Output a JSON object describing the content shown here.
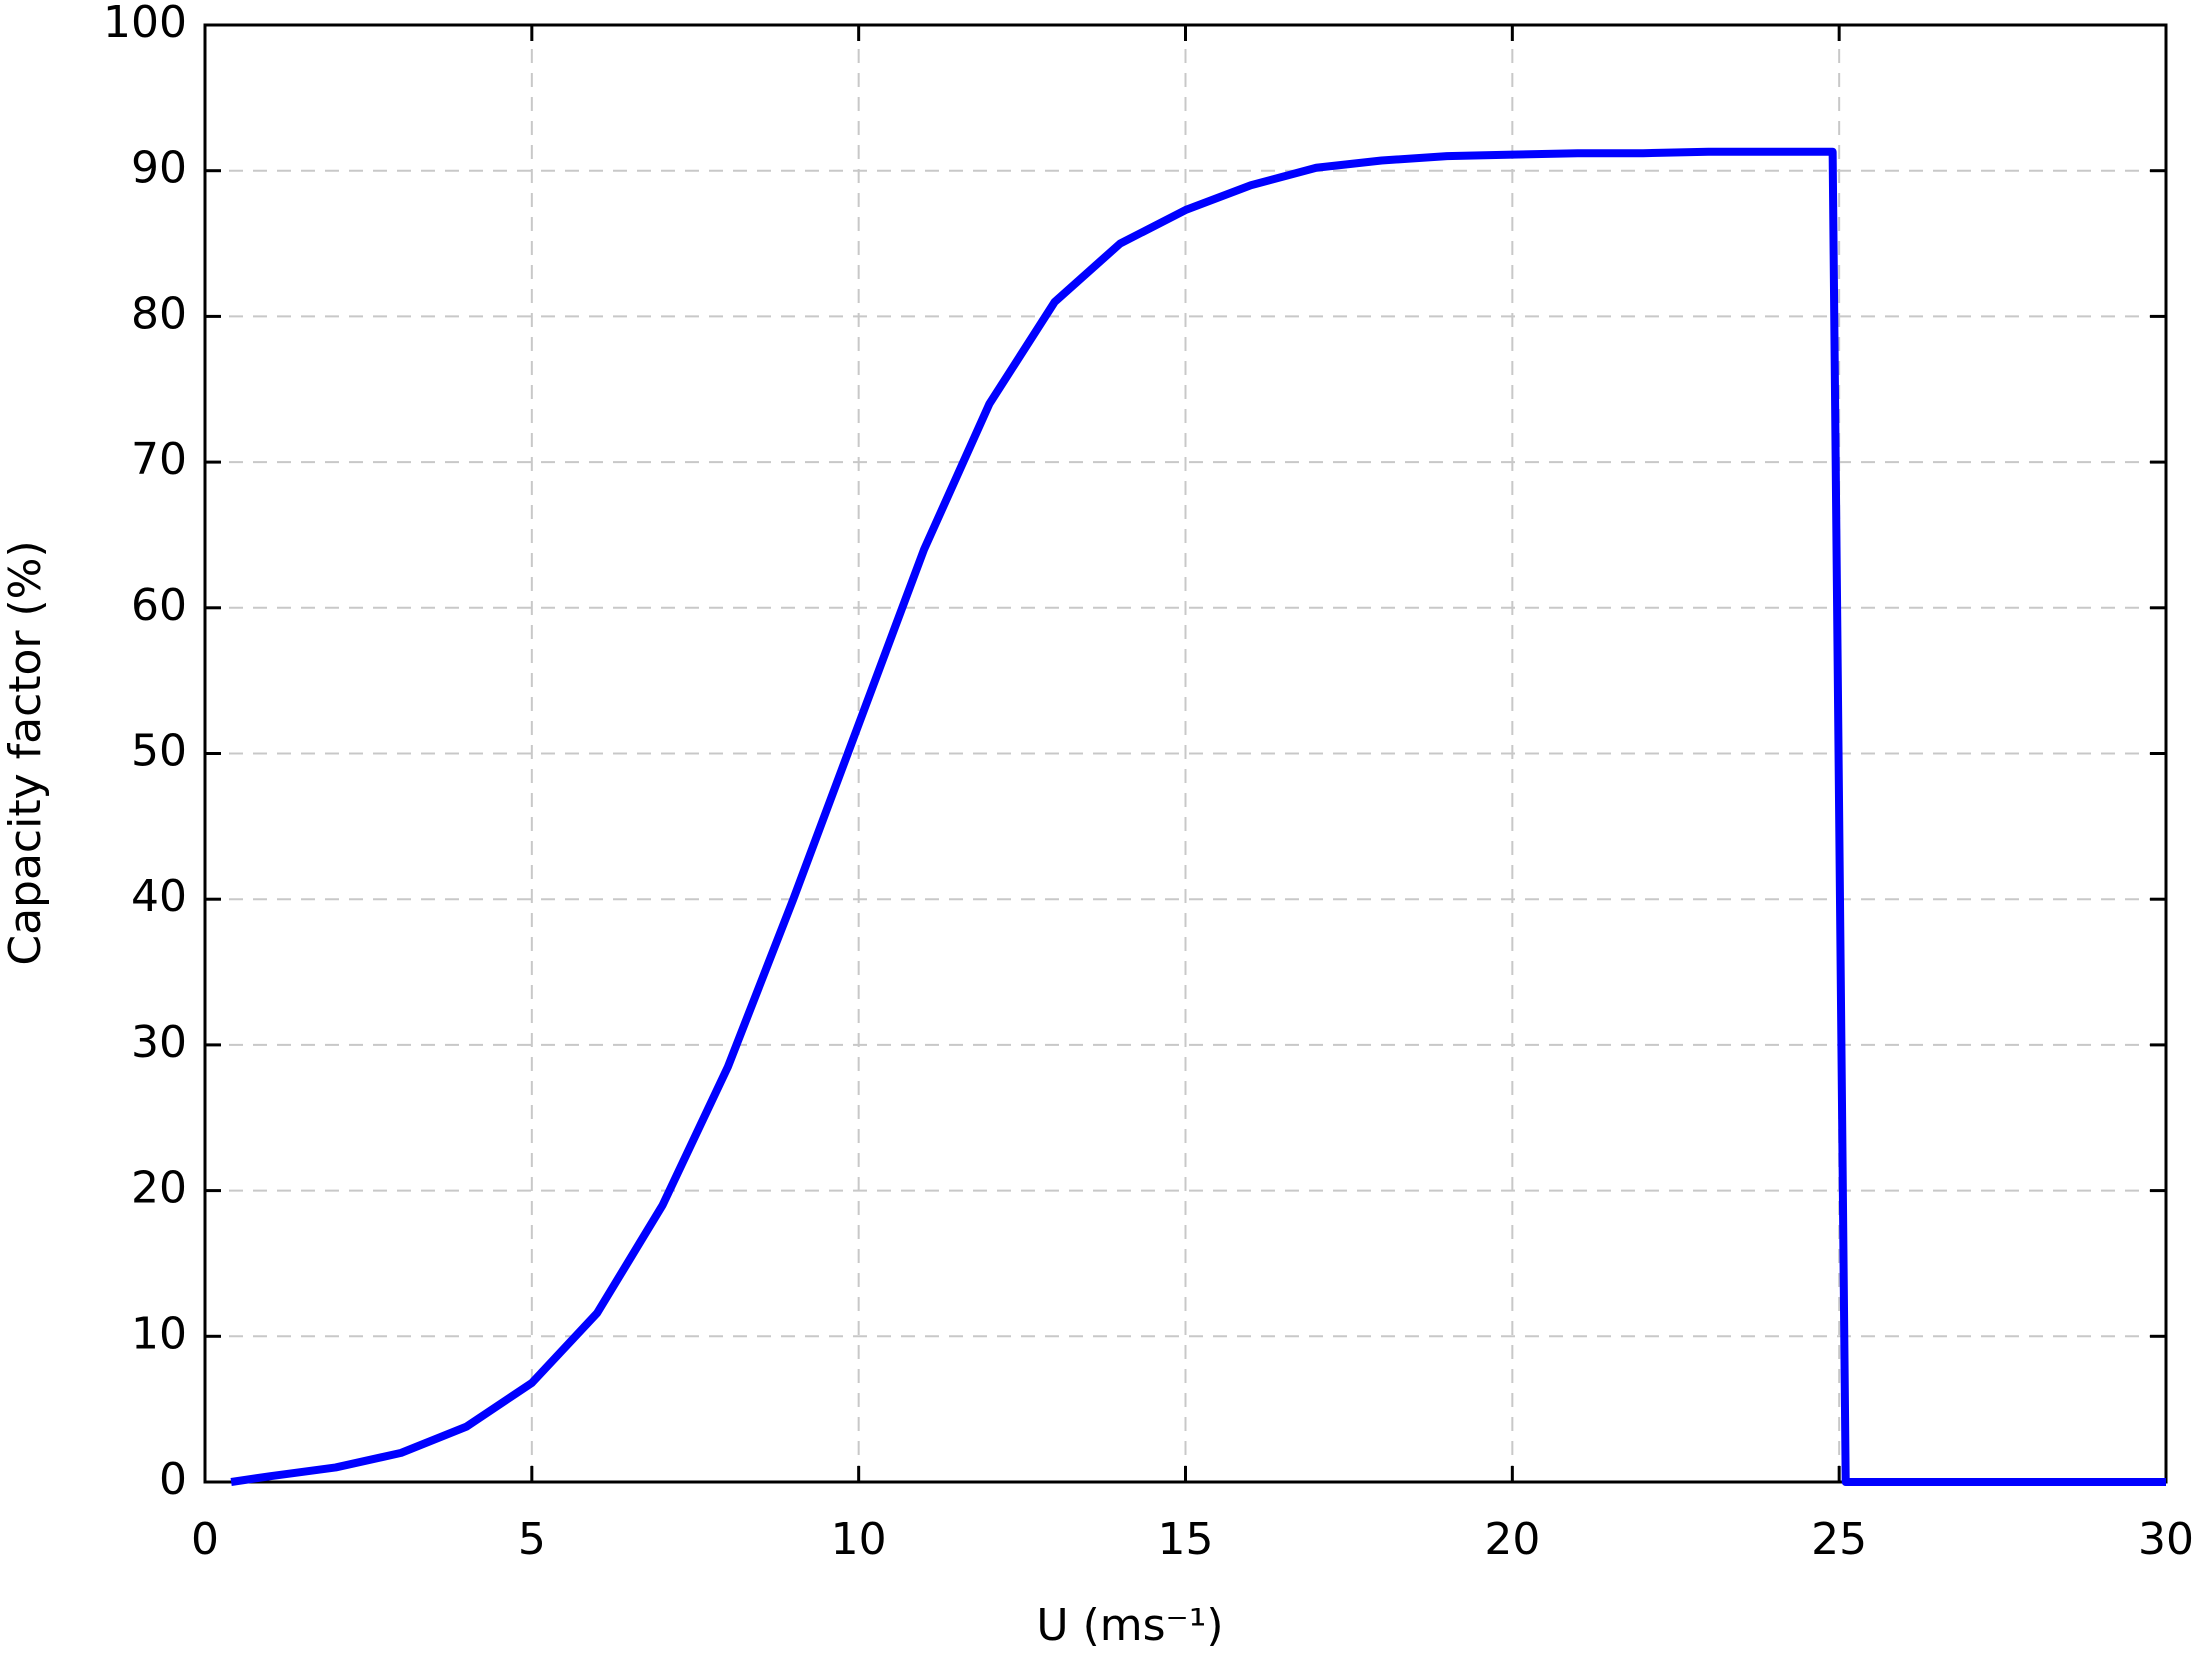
{
  "chart_data": {
    "type": "line",
    "xlabel": "U (ms⁻¹)",
    "ylabel": "Capacity factor (%)",
    "x": [
      0.4,
      1,
      2,
      3,
      4,
      5,
      6,
      7,
      8,
      9,
      10,
      11,
      12,
      13,
      14,
      15,
      16,
      17,
      18,
      19,
      20,
      21,
      22,
      23,
      24,
      24.9,
      25.1,
      30
    ],
    "series": [
      {
        "color": "#0000ff",
        "values": [
          0,
          0.4,
          1,
          2,
          3.8,
          6.8,
          11.6,
          19,
          28.5,
          40,
          52,
          64,
          74,
          81,
          85,
          87.3,
          89,
          90.2,
          90.7,
          91,
          91.1,
          91.2,
          91.2,
          91.3,
          91.3,
          91.3,
          0,
          0
        ]
      }
    ],
    "xlim": [
      0,
      30
    ],
    "xticks": [
      0,
      5,
      10,
      15,
      20,
      25,
      30
    ],
    "ylim": [
      0,
      100
    ],
    "yticks": [
      0,
      10,
      20,
      30,
      40,
      50,
      60,
      70,
      80,
      90,
      100
    ],
    "grid": true
  }
}
